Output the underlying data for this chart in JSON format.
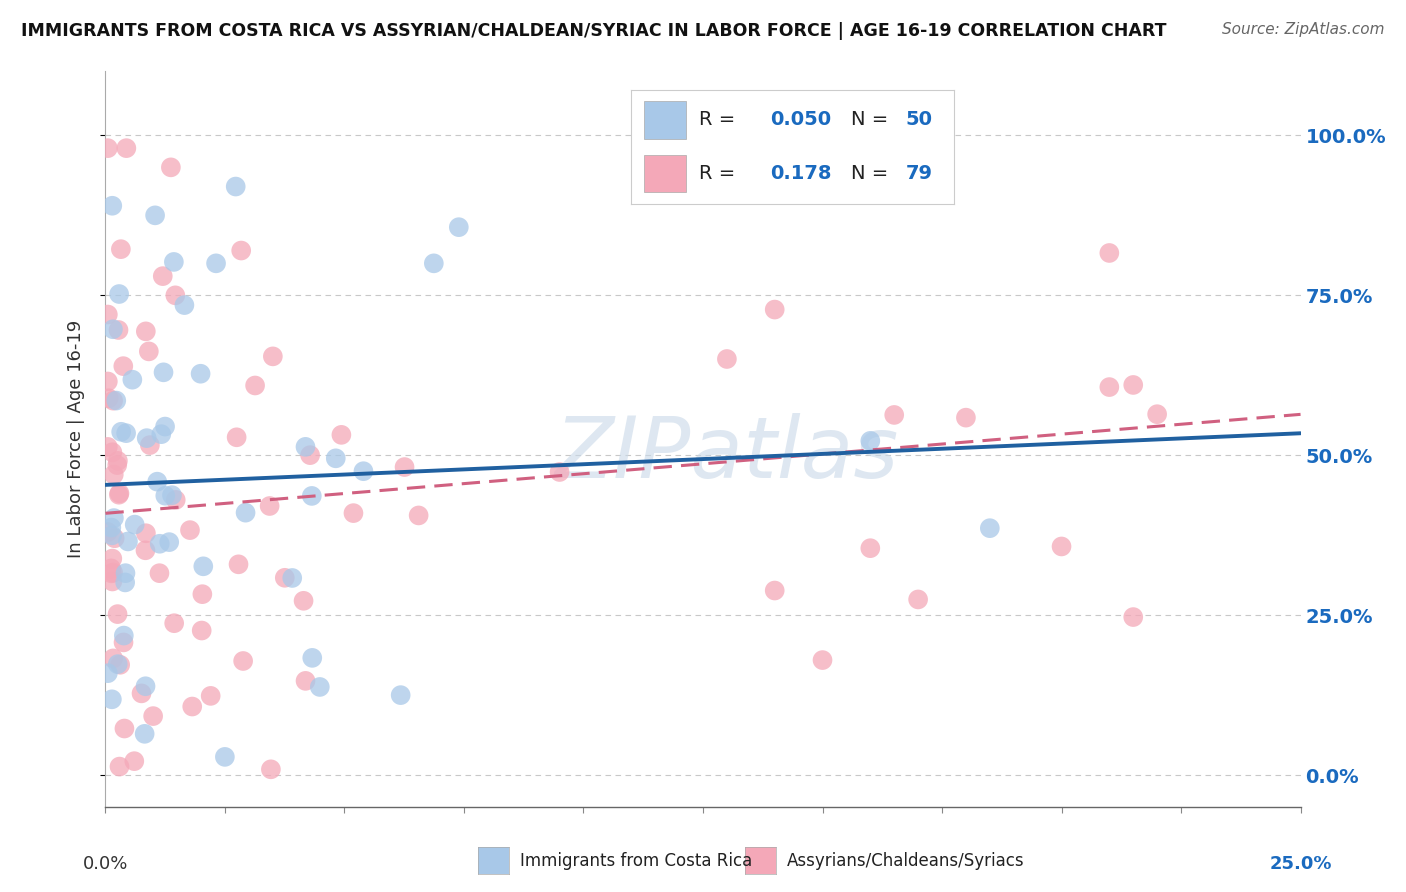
{
  "title": "IMMIGRANTS FROM COSTA RICA VS ASSYRIAN/CHALDEAN/SYRIAC IN LABOR FORCE | AGE 16-19 CORRELATION CHART",
  "source": "Source: ZipAtlas.com",
  "ylabel": "In Labor Force | Age 16-19",
  "ytick_vals": [
    0.0,
    0.25,
    0.5,
    0.75,
    1.0
  ],
  "ytick_labels": [
    "0.0%",
    "25.0%",
    "50.0%",
    "75.0%",
    "100.0%"
  ],
  "xlim": [
    0.0,
    0.25
  ],
  "ylim": [
    -0.05,
    1.1
  ],
  "series_names": [
    "Immigrants from Costa Rica",
    "Assyrians/Chaldeans/Syriacs"
  ],
  "blue_color": "#a8c8e8",
  "pink_color": "#f4a8b8",
  "blue_line_color": "#2060a0",
  "pink_line_color": "#d06080",
  "watermark": "ZIPatlas",
  "R_blue": 0.05,
  "N_blue": 50,
  "R_pink": 0.178,
  "N_pink": 79,
  "legend_R_N_color": "#1a6abf",
  "legend_label_color": "#222222"
}
